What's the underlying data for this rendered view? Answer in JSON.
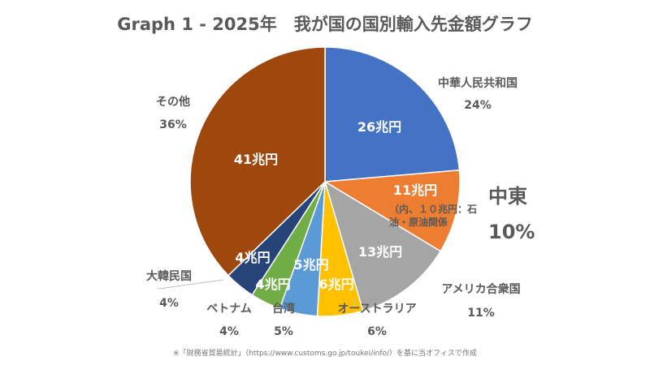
{
  "chart_data": {
    "type": "pie",
    "title": "Graph 1 - 2025年　我が国の国別輸入先金額グラフ",
    "start_angle_deg": 0,
    "direction": "clockwise",
    "slices": [
      {
        "name": "中華人民共和国",
        "amount": 26,
        "amount_label": "26兆円",
        "percent_label": "24%",
        "color": "#4472c4"
      },
      {
        "name": "中東",
        "amount": 11,
        "amount_label": "11兆円",
        "percent_label": "10%",
        "color": "#ed7d31",
        "note": "（内、１０兆円：石油・原油関係"
      },
      {
        "name": "アメリカ合衆国",
        "amount": 13,
        "amount_label": "13兆円",
        "percent_label": "11%",
        "color": "#a5a5a5"
      },
      {
        "name": "オーストラリア",
        "amount": 6,
        "amount_label": "6兆円",
        "percent_label": "6%",
        "color": "#ffc000"
      },
      {
        "name": "台湾",
        "amount": 5,
        "amount_label": "5兆円",
        "percent_label": "5%",
        "color": "#5b9bd5"
      },
      {
        "name": "ベトナム",
        "amount": 4,
        "amount_label": "4兆円",
        "percent_label": "4%",
        "color": "#70ad47"
      },
      {
        "name": "大韓民国",
        "amount": 4,
        "amount_label": "4兆円",
        "percent_label": "4%",
        "color": "#264478"
      },
      {
        "name": "その他",
        "amount": 41,
        "amount_label": "41兆円",
        "percent_label": "36%",
        "color": "#9e480e"
      }
    ],
    "footnote": "※「財務省貿易統計」（https://www.customs.go.jp/toukei/info/）を基に当オフィスで作成"
  }
}
